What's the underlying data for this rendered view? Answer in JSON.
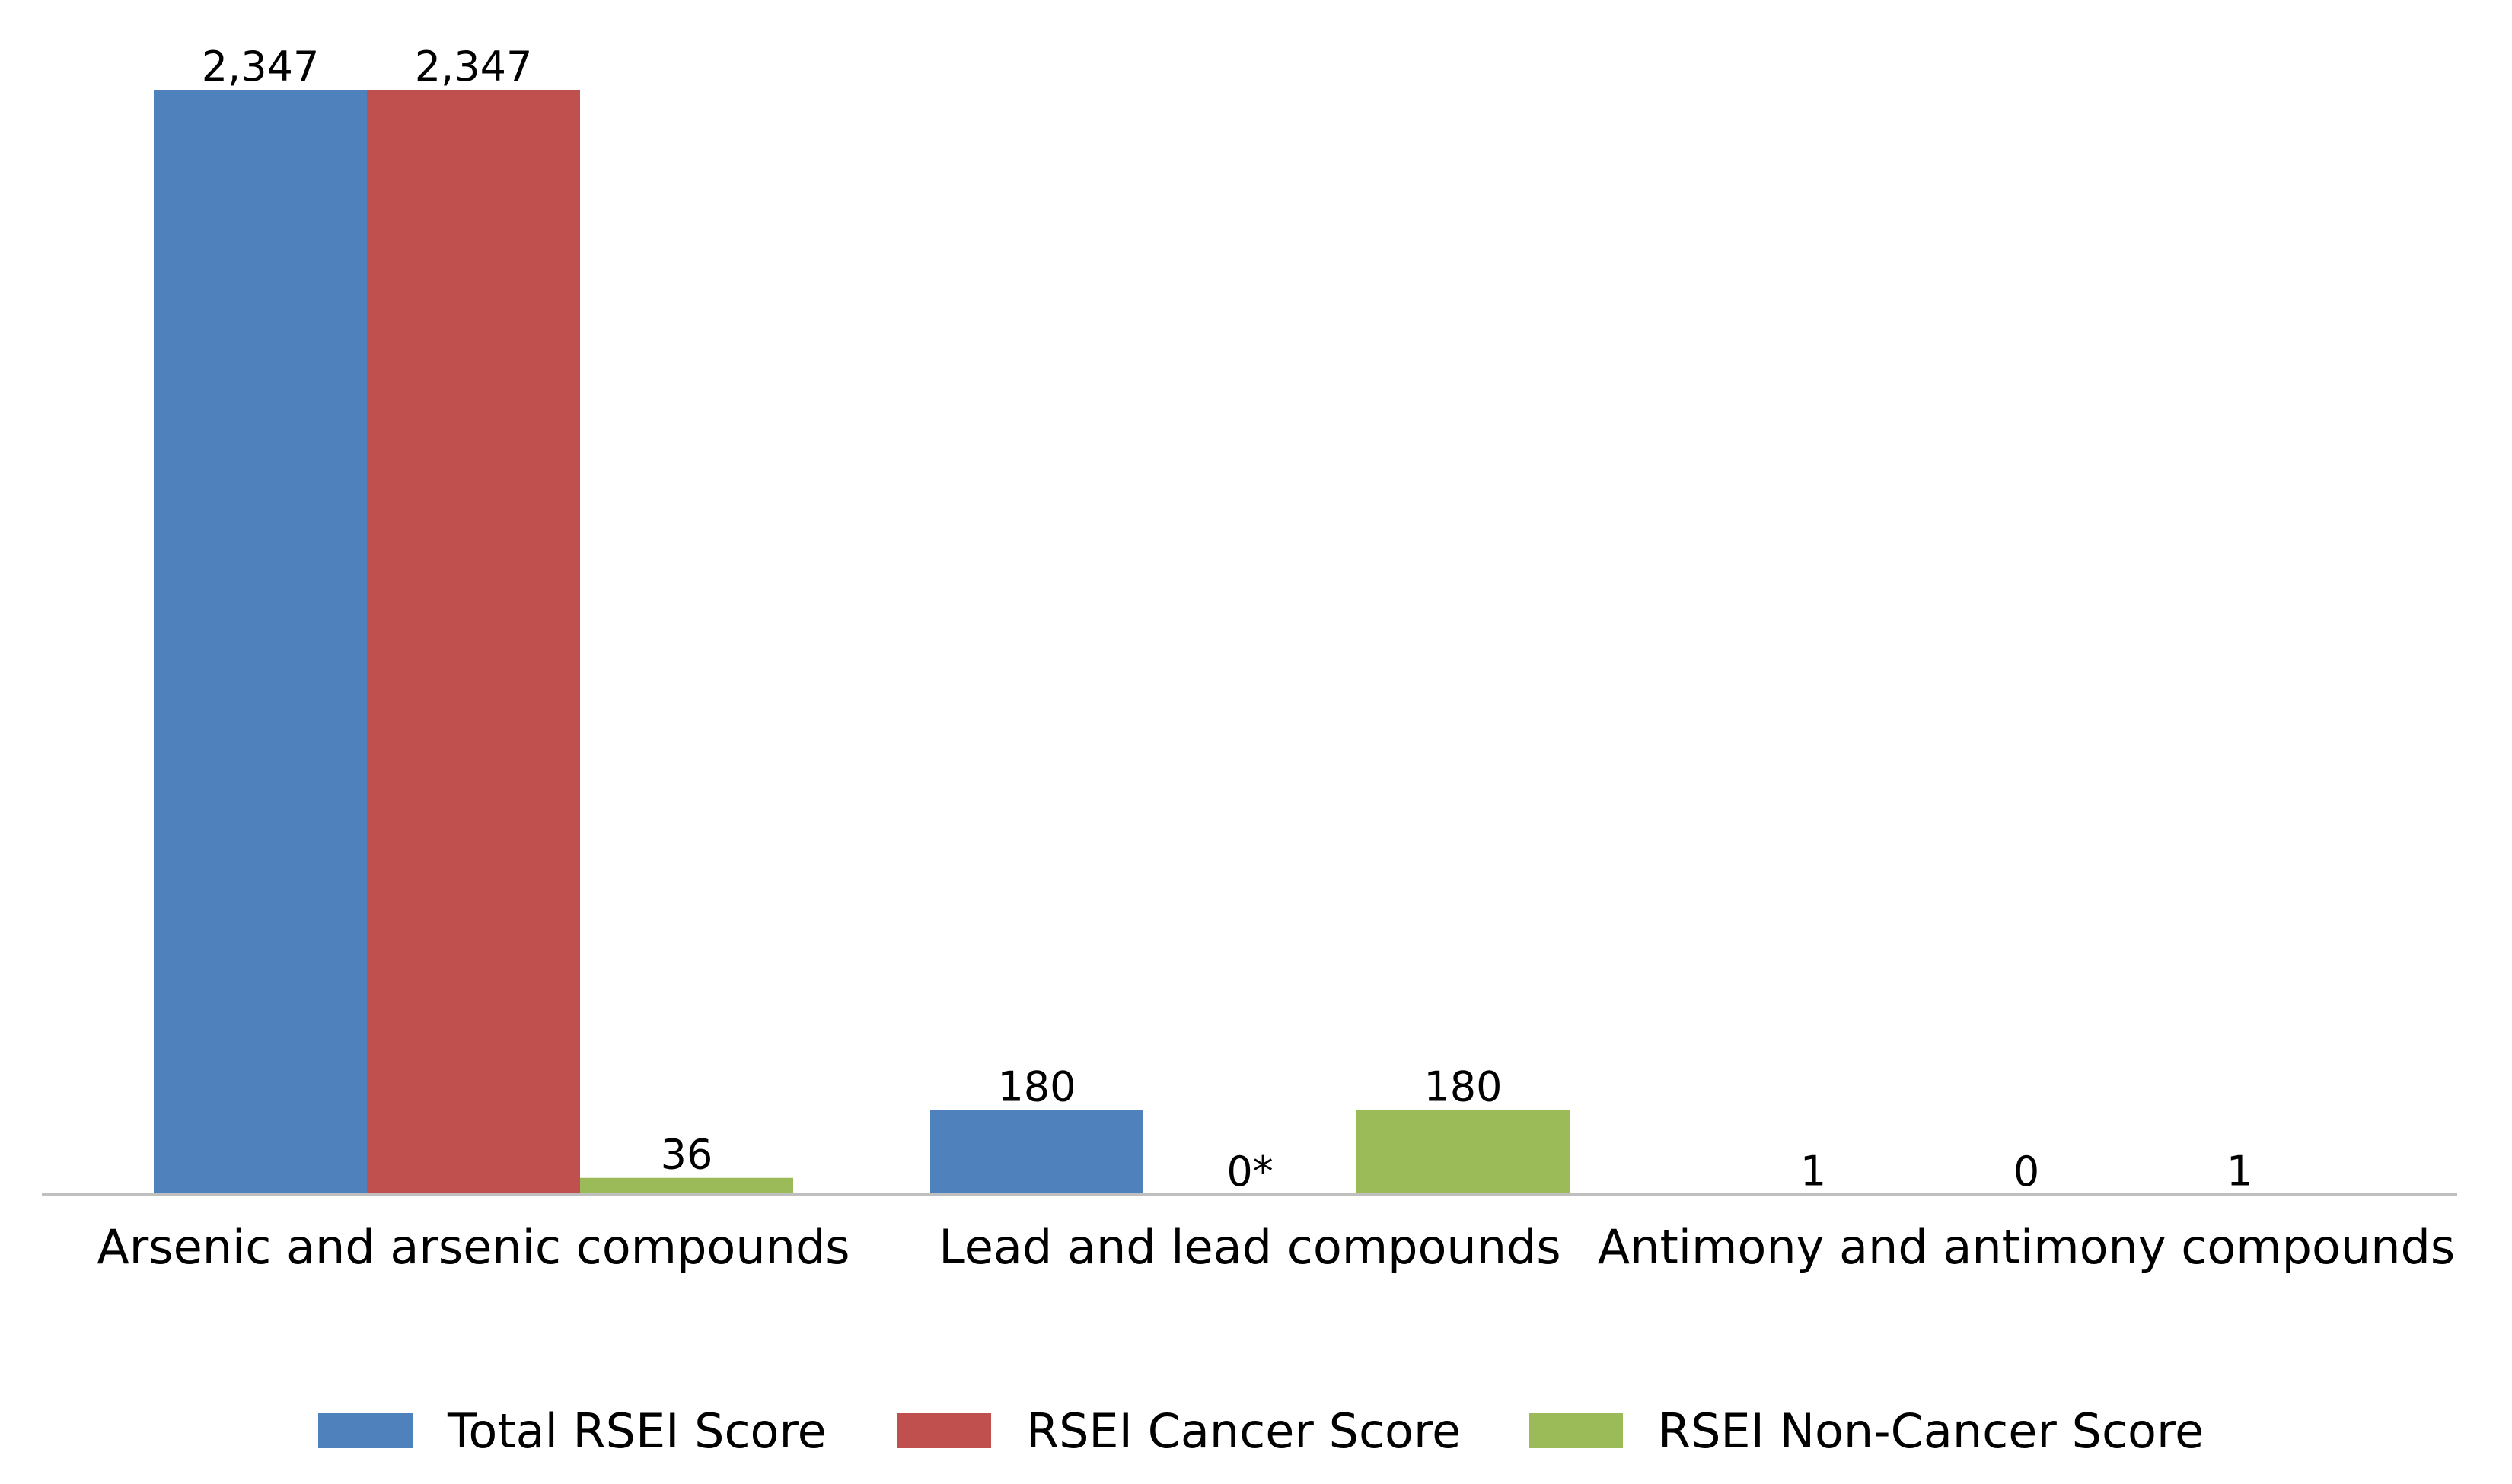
{
  "chart_data": {
    "type": "bar",
    "categories": [
      "Arsenic and arsenic compounds",
      "Lead and lead compounds",
      "Antimony and antimony compounds"
    ],
    "series": [
      {
        "name": "Total RSEI Score",
        "color": "#4F81BD",
        "values": [
          2347,
          180,
          1
        ],
        "labels": [
          "2,347",
          "180",
          "1"
        ]
      },
      {
        "name": "RSEI Cancer Score",
        "color": "#C0504D",
        "values": [
          2347,
          0,
          0
        ],
        "labels": [
          "2,347",
          "0*",
          "0"
        ]
      },
      {
        "name": "RSEI Non-Cancer Score",
        "color": "#9BBB59",
        "values": [
          36,
          180,
          1
        ],
        "labels": [
          "36",
          "180",
          "1"
        ]
      }
    ],
    "title": "",
    "xlabel": "",
    "ylabel": "",
    "ylim": [
      0,
      2347
    ],
    "grid": false,
    "legend_position": "bottom-center",
    "axis_color": "#BFBFBF"
  }
}
